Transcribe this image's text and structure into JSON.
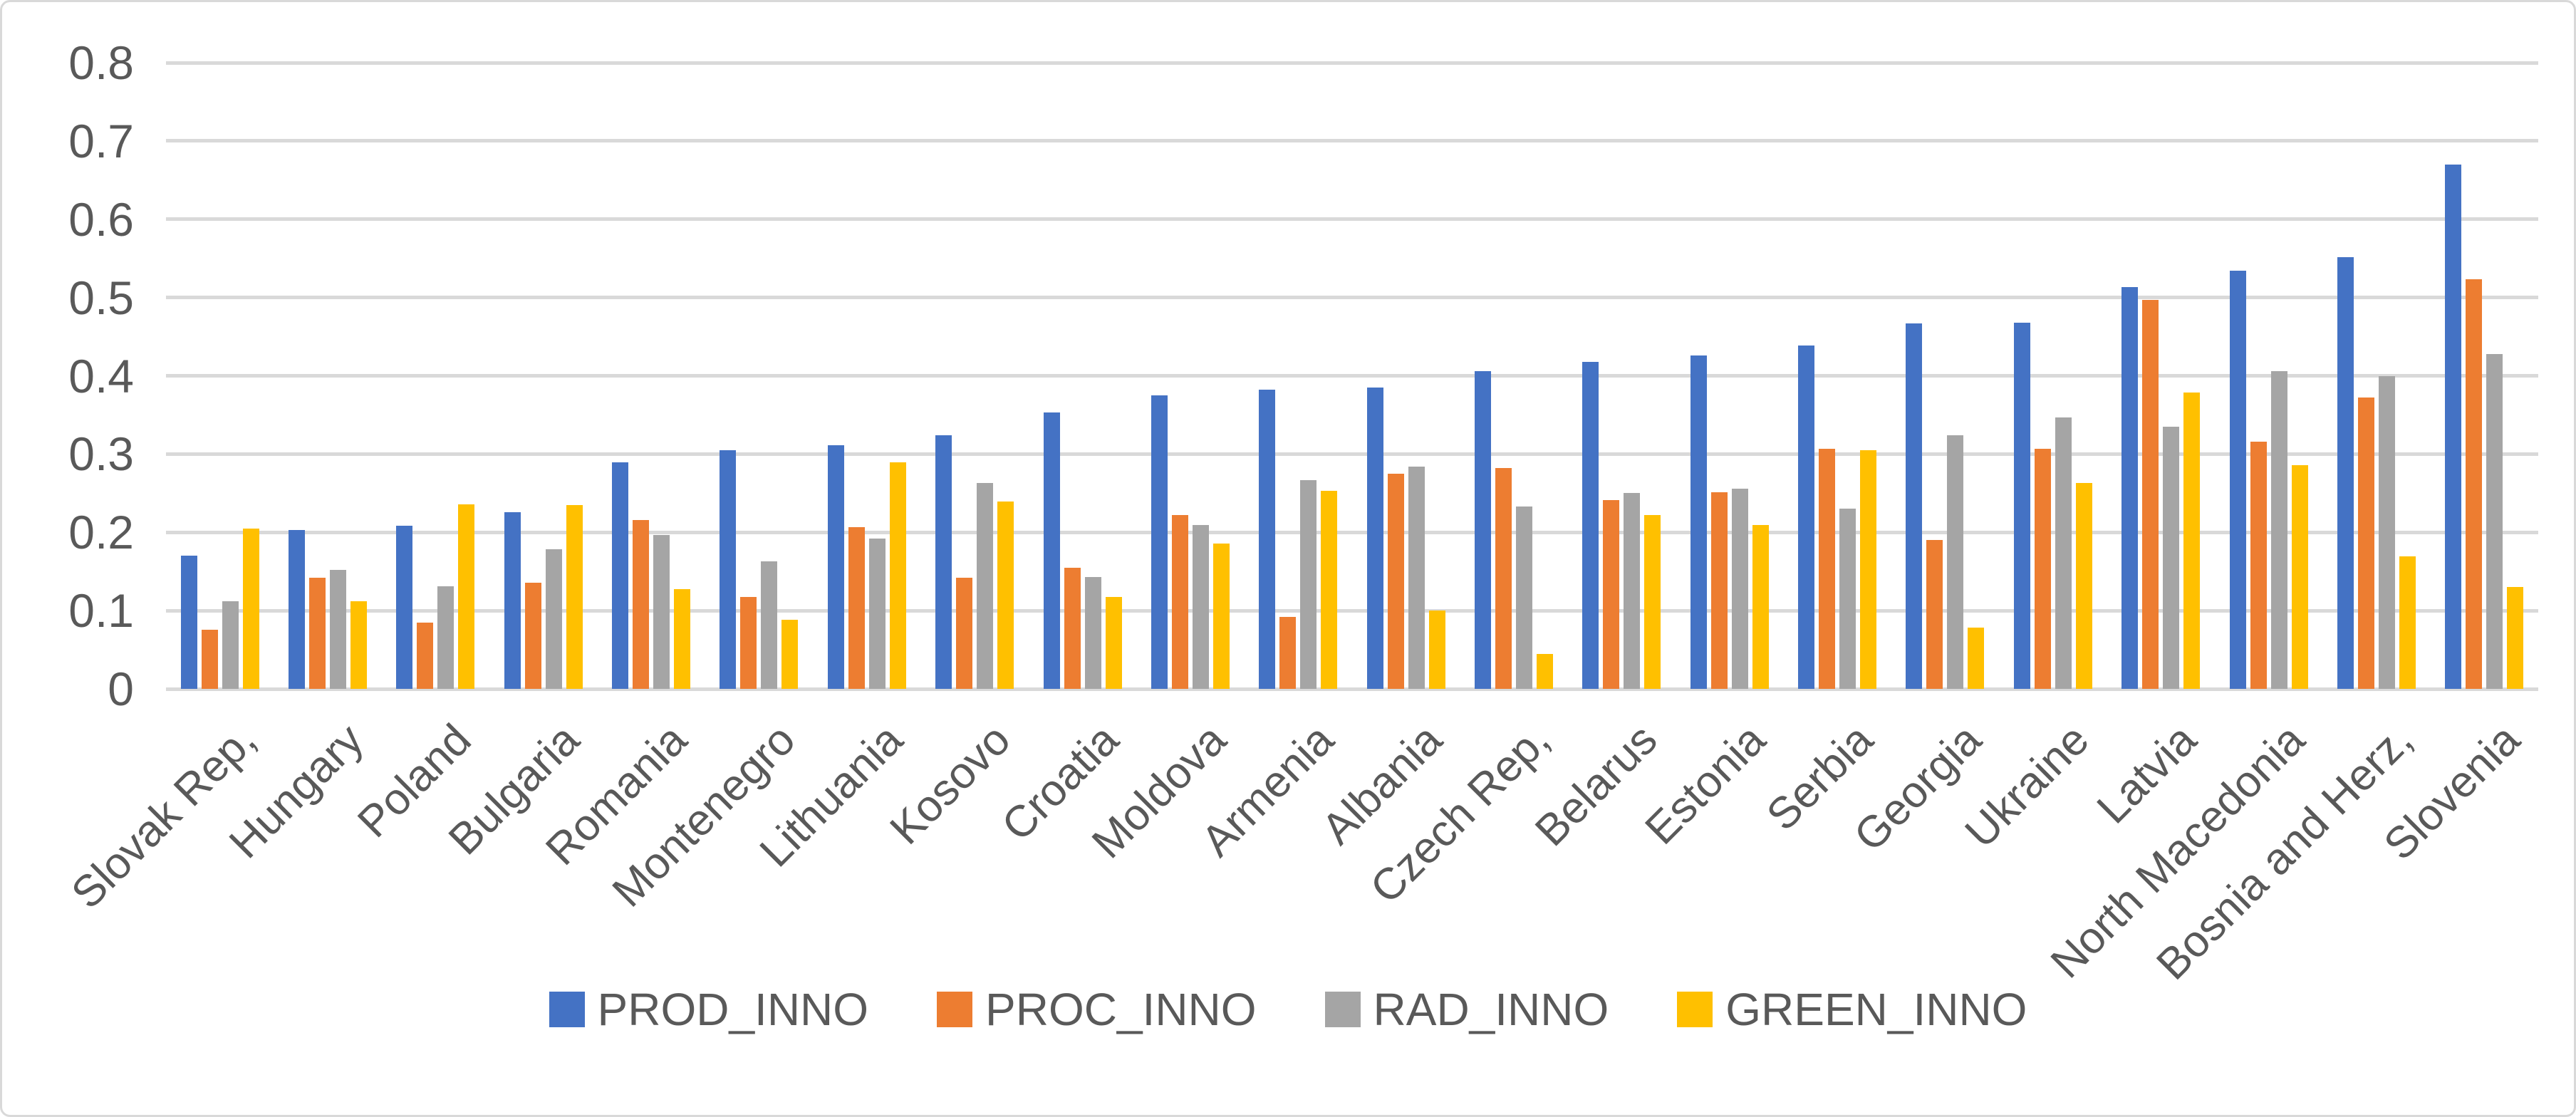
{
  "chart_data": {
    "type": "bar",
    "title": "",
    "xlabel": "",
    "ylabel": "",
    "ylim": [
      0,
      0.8
    ],
    "yticks": [
      0,
      0.1,
      0.2,
      0.3,
      0.4,
      0.5,
      0.6,
      0.7,
      0.8
    ],
    "ytick_labels": [
      "0",
      "0.1",
      "0.2",
      "0.3",
      "0.4",
      "0.5",
      "0.6",
      "0.7",
      "0.8"
    ],
    "grid": "horizontal",
    "legend_position": "bottom",
    "gridline_color": "#D9D9D9",
    "axis_text_color": "#595959",
    "categories": [
      "Slovak Rep,",
      "Hungary",
      "Poland",
      "Bulgaria",
      "Romania",
      "Montenegro",
      "Lithuania",
      "Kosovo",
      "Croatia",
      "Moldova",
      "Armenia",
      "Albania",
      "Czech Rep,",
      "Belarus",
      "Estonia",
      "Serbia",
      "Georgia",
      "Ukraine",
      "Latvia",
      "North Macedonia",
      "Bosnia and Herz,",
      "Slovenia"
    ],
    "series": [
      {
        "name": "PROD_INNO",
        "color": "#4472C4",
        "values": [
          0.17,
          0.203,
          0.208,
          0.226,
          0.289,
          0.305,
          0.311,
          0.324,
          0.353,
          0.375,
          0.382,
          0.385,
          0.406,
          0.418,
          0.426,
          0.439,
          0.467,
          0.468,
          0.513,
          0.534,
          0.552,
          0.67
        ]
      },
      {
        "name": "PROC_INNO",
        "color": "#ED7D31",
        "values": [
          0.076,
          0.142,
          0.085,
          0.136,
          0.216,
          0.117,
          0.207,
          0.142,
          0.155,
          0.222,
          0.092,
          0.275,
          0.282,
          0.241,
          0.251,
          0.307,
          0.19,
          0.307,
          0.497,
          0.316,
          0.372,
          0.523
        ]
      },
      {
        "name": "RAD_INNO",
        "color": "#A5A5A5",
        "values": [
          0.112,
          0.152,
          0.131,
          0.178,
          0.197,
          0.163,
          0.192,
          0.263,
          0.143,
          0.209,
          0.267,
          0.284,
          0.233,
          0.25,
          0.256,
          0.23,
          0.324,
          0.347,
          0.335,
          0.406,
          0.4,
          0.428
        ]
      },
      {
        "name": "GREEN_INNO",
        "color": "#FFC000",
        "values": [
          0.205,
          0.112,
          0.236,
          0.235,
          0.127,
          0.088,
          0.289,
          0.239,
          0.117,
          0.186,
          0.253,
          0.1,
          0.045,
          0.222,
          0.209,
          0.305,
          0.078,
          0.263,
          0.379,
          0.286,
          0.169,
          0.13
        ]
      }
    ]
  }
}
